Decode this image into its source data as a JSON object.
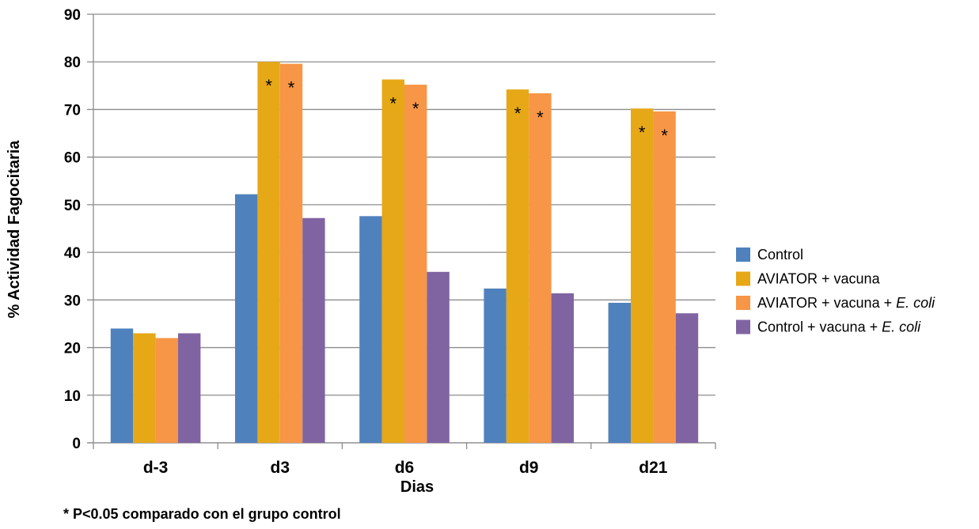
{
  "chart_data": {
    "type": "bar",
    "ylabel": "% Actividad Fagocitaria",
    "xlabel": "Dias",
    "ylim": [
      0,
      90
    ],
    "yticks": [
      0,
      10,
      20,
      30,
      40,
      50,
      60,
      70,
      80,
      90
    ],
    "grid": true,
    "legend_position": "right",
    "categories": [
      "d-3",
      "d3",
      "d6",
      "d9",
      "d21"
    ],
    "series": [
      {
        "name": "Control",
        "name_parts": [
          {
            "text": "Control",
            "italic": false
          }
        ],
        "color": "#4F81BD",
        "values": [
          24,
          52.2,
          47.6,
          32.4,
          29.4
        ],
        "significance": [
          false,
          false,
          false,
          false,
          false
        ]
      },
      {
        "name": "AVIATOR + vacuna",
        "name_parts": [
          {
            "text": "AVIATOR + vacuna",
            "italic": false
          }
        ],
        "color": "#E6A817",
        "values": [
          23,
          80,
          76.3,
          74.2,
          70.2
        ],
        "significance": [
          false,
          true,
          true,
          true,
          true
        ]
      },
      {
        "name": "AVIATOR + vacuna + E. coli",
        "name_parts": [
          {
            "text": "AVIATOR + vacuna + ",
            "italic": false
          },
          {
            "text": "E. coli",
            "italic": true
          }
        ],
        "color": "#F79646",
        "values": [
          22,
          79.6,
          75.2,
          73.4,
          69.6
        ],
        "significance": [
          false,
          true,
          true,
          true,
          true
        ]
      },
      {
        "name": "Control + vacuna + E. coli",
        "name_parts": [
          {
            "text": "Control + vacuna + ",
            "italic": false
          },
          {
            "text": "E. coli",
            "italic": true
          }
        ],
        "color": "#8064A2",
        "values": [
          23,
          47.2,
          35.9,
          31.4,
          27.2
        ],
        "significance": [
          false,
          false,
          false,
          false,
          false
        ]
      }
    ],
    "significance_marker": "*",
    "footnote": "* P<0.05 comparado con el grupo control"
  },
  "colors": {
    "gridline": "#8C8C8C",
    "axis": "#8C8C8C"
  }
}
